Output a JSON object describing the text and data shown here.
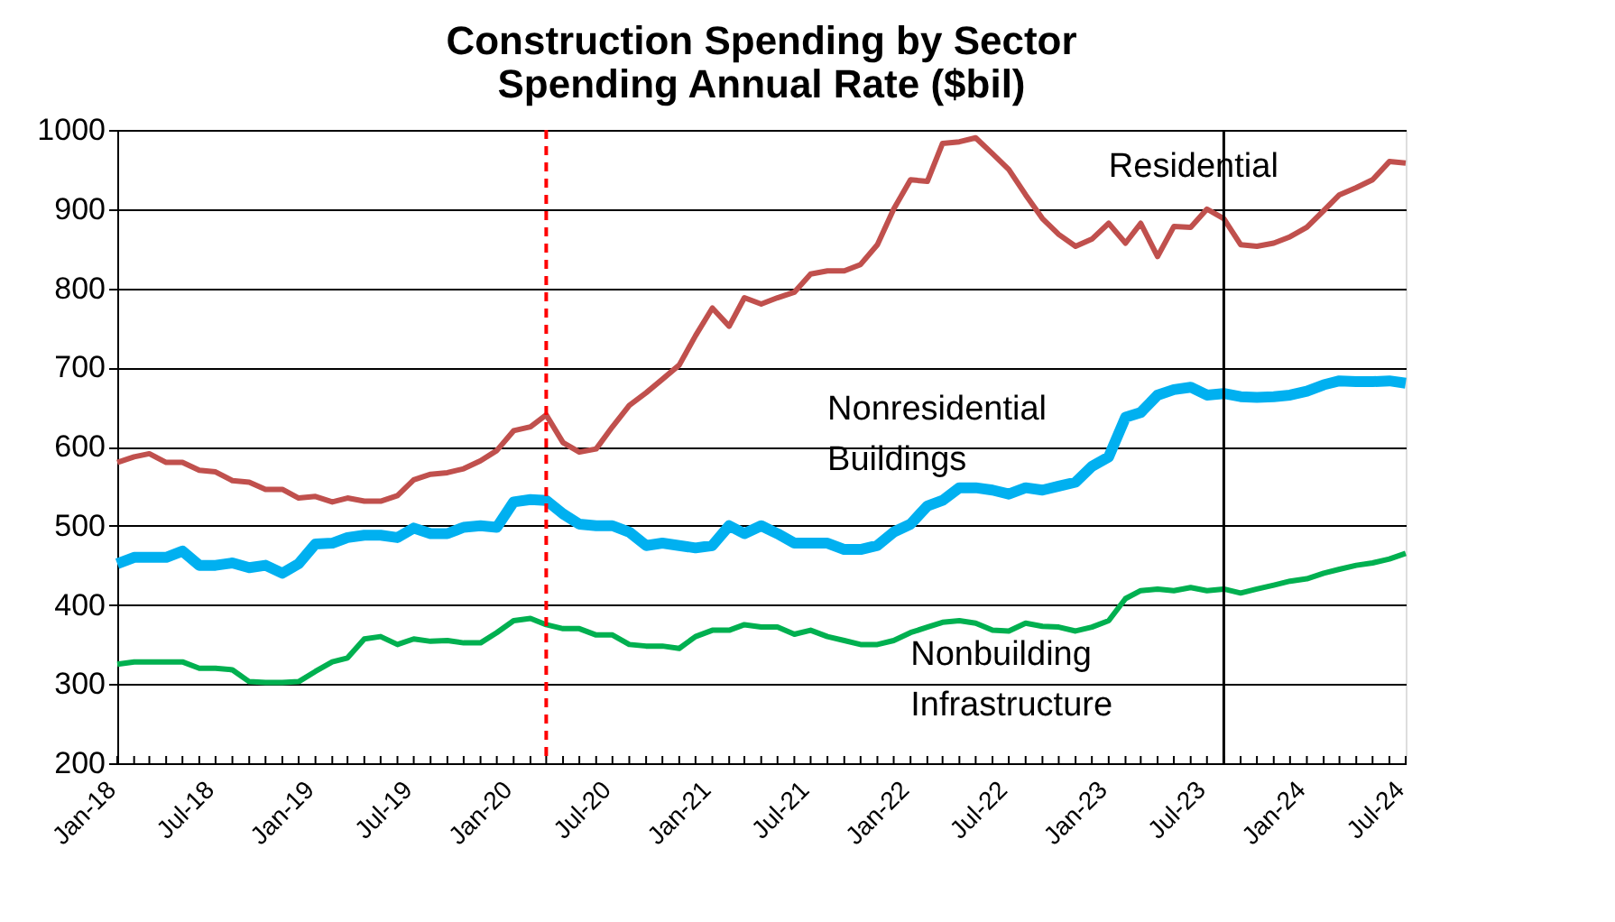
{
  "chart_data": {
    "type": "line",
    "title": "Construction Spending by Sector",
    "subtitle": "Spending Annual Rate ($bil)",
    "x": [
      "2018-01",
      "2018-02",
      "2018-03",
      "2018-04",
      "2018-05",
      "2018-06",
      "2018-07",
      "2018-08",
      "2018-09",
      "2018-10",
      "2018-11",
      "2018-12",
      "2019-01",
      "2019-02",
      "2019-03",
      "2019-04",
      "2019-05",
      "2019-06",
      "2019-07",
      "2019-08",
      "2019-09",
      "2019-10",
      "2019-11",
      "2019-12",
      "2020-01",
      "2020-02",
      "2020-03",
      "2020-04",
      "2020-05",
      "2020-06",
      "2020-07",
      "2020-08",
      "2020-09",
      "2020-10",
      "2020-11",
      "2020-12",
      "2021-01",
      "2021-02",
      "2021-03",
      "2021-04",
      "2021-05",
      "2021-06",
      "2021-07",
      "2021-08",
      "2021-09",
      "2021-10",
      "2021-11",
      "2021-12",
      "2022-01",
      "2022-02",
      "2022-03",
      "2022-04",
      "2022-05",
      "2022-06",
      "2022-07",
      "2022-08",
      "2022-09",
      "2022-10",
      "2022-11",
      "2022-12",
      "2023-01",
      "2023-02",
      "2023-03",
      "2023-04",
      "2023-05",
      "2023-06",
      "2023-07",
      "2023-08",
      "2023-09",
      "2023-10",
      "2023-11",
      "2023-12",
      "2024-01",
      "2024-02",
      "2024-03",
      "2024-04",
      "2024-05",
      "2024-06",
      "2024-07"
    ],
    "series": [
      {
        "name": "Residential",
        "color": "#c0504d",
        "values": [
          580,
          587,
          591,
          580,
          580,
          570,
          568,
          557,
          555,
          546,
          546,
          535,
          537,
          530,
          535,
          531,
          531,
          538,
          558,
          565,
          567,
          572,
          582,
          595,
          620,
          625,
          640,
          605,
          593,
          597,
          625,
          652,
          668,
          685,
          703,
          740,
          775,
          752,
          788,
          780,
          788,
          795,
          818,
          822,
          822,
          830,
          855,
          900,
          937,
          935,
          983,
          985,
          990,
          970,
          950,
          918,
          888,
          868,
          853,
          862,
          882,
          857,
          882,
          840,
          878,
          877,
          900,
          888,
          855,
          853,
          857,
          865,
          877,
          898,
          918,
          927,
          937,
          960,
          958
        ]
      },
      {
        "name": "Nonresidential Buildings",
        "color": "#00b0f0",
        "values": [
          452,
          460,
          460,
          460,
          468,
          450,
          450,
          453,
          447,
          450,
          440,
          452,
          477,
          478,
          485,
          488,
          488,
          485,
          497,
          490,
          490,
          498,
          500,
          498,
          530,
          533,
          532,
          515,
          502,
          500,
          500,
          492,
          475,
          478,
          475,
          472,
          475,
          500,
          490,
          500,
          490,
          478,
          478,
          478,
          470,
          470,
          475,
          492,
          502,
          525,
          532,
          548,
          548,
          545,
          540,
          548,
          545,
          550,
          555,
          575,
          587,
          637,
          643,
          665,
          672,
          675,
          665,
          667,
          663,
          662,
          663,
          665,
          670,
          678,
          683,
          682,
          682,
          683,
          680
        ]
      },
      {
        "name": "Nonbuilding Infrastructure",
        "color": "#00b050",
        "values": [
          325,
          328,
          328,
          328,
          328,
          320,
          320,
          318,
          303,
          302,
          302,
          303,
          316,
          328,
          333,
          357,
          360,
          350,
          357,
          354,
          355,
          352,
          352,
          365,
          380,
          383,
          375,
          370,
          370,
          362,
          362,
          350,
          348,
          348,
          345,
          360,
          368,
          368,
          375,
          372,
          372,
          363,
          368,
          360,
          355,
          350,
          350,
          355,
          365,
          372,
          378,
          380,
          377,
          368,
          367,
          377,
          373,
          372,
          367,
          372,
          380,
          408,
          418,
          420,
          418,
          422,
          418,
          420,
          415,
          420,
          425,
          430,
          433,
          440,
          445,
          450,
          453,
          458,
          465
        ]
      }
    ],
    "xlim": [
      "2018-01",
      "2024-07"
    ],
    "xticks": [
      {
        "value": "2018-01",
        "label": "Jan-18"
      },
      {
        "value": "2018-02",
        "label": null
      },
      {
        "value": "2018-03",
        "label": null
      },
      {
        "value": "2018-04",
        "label": null
      },
      {
        "value": "2018-05",
        "label": null
      },
      {
        "value": "2018-06",
        "label": null
      },
      {
        "value": "2018-07",
        "label": "Jul-18"
      },
      {
        "value": "2018-08",
        "label": null
      },
      {
        "value": "2018-09",
        "label": null
      },
      {
        "value": "2018-10",
        "label": null
      },
      {
        "value": "2018-11",
        "label": null
      },
      {
        "value": "2018-12",
        "label": null
      },
      {
        "value": "2019-01",
        "label": "Jan-19"
      },
      {
        "value": "2019-02",
        "label": null
      },
      {
        "value": "2019-03",
        "label": null
      },
      {
        "value": "2019-04",
        "label": null
      },
      {
        "value": "2019-05",
        "label": null
      },
      {
        "value": "2019-06",
        "label": null
      },
      {
        "value": "2019-07",
        "label": "Jul-19"
      },
      {
        "value": "2019-08",
        "label": null
      },
      {
        "value": "2019-09",
        "label": null
      },
      {
        "value": "2019-10",
        "label": null
      },
      {
        "value": "2019-11",
        "label": null
      },
      {
        "value": "2019-12",
        "label": null
      },
      {
        "value": "2020-01",
        "label": "Jan-20"
      },
      {
        "value": "2020-02",
        "label": null
      },
      {
        "value": "2020-03",
        "label": null
      },
      {
        "value": "2020-04",
        "label": null
      },
      {
        "value": "2020-05",
        "label": null
      },
      {
        "value": "2020-06",
        "label": null
      },
      {
        "value": "2020-07",
        "label": "Jul-20"
      },
      {
        "value": "2020-08",
        "label": null
      },
      {
        "value": "2020-09",
        "label": null
      },
      {
        "value": "2020-10",
        "label": null
      },
      {
        "value": "2020-11",
        "label": null
      },
      {
        "value": "2020-12",
        "label": null
      },
      {
        "value": "2021-01",
        "label": "Jan-21"
      },
      {
        "value": "2021-02",
        "label": null
      },
      {
        "value": "2021-03",
        "label": null
      },
      {
        "value": "2021-04",
        "label": null
      },
      {
        "value": "2021-05",
        "label": null
      },
      {
        "value": "2021-06",
        "label": null
      },
      {
        "value": "2021-07",
        "label": "Jul-21"
      },
      {
        "value": "2021-08",
        "label": null
      },
      {
        "value": "2021-09",
        "label": null
      },
      {
        "value": "2021-10",
        "label": null
      },
      {
        "value": "2021-11",
        "label": null
      },
      {
        "value": "2021-12",
        "label": null
      },
      {
        "value": "2022-01",
        "label": "Jan-22"
      },
      {
        "value": "2022-02",
        "label": null
      },
      {
        "value": "2022-03",
        "label": null
      },
      {
        "value": "2022-04",
        "label": null
      },
      {
        "value": "2022-05",
        "label": null
      },
      {
        "value": "2022-06",
        "label": null
      },
      {
        "value": "2022-07",
        "label": "Jul-22"
      },
      {
        "value": "2022-08",
        "label": null
      },
      {
        "value": "2022-09",
        "label": null
      },
      {
        "value": "2022-10",
        "label": null
      },
      {
        "value": "2022-11",
        "label": null
      },
      {
        "value": "2022-12",
        "label": null
      },
      {
        "value": "2023-01",
        "label": "Jan-23"
      },
      {
        "value": "2023-02",
        "label": null
      },
      {
        "value": "2023-03",
        "label": null
      },
      {
        "value": "2023-04",
        "label": null
      },
      {
        "value": "2023-05",
        "label": null
      },
      {
        "value": "2023-06",
        "label": null
      },
      {
        "value": "2023-07",
        "label": "Jul-23"
      },
      {
        "value": "2023-08",
        "label": null
      },
      {
        "value": "2023-09",
        "label": null
      },
      {
        "value": "2023-10",
        "label": null
      },
      {
        "value": "2023-11",
        "label": null
      },
      {
        "value": "2023-12",
        "label": null
      },
      {
        "value": "2024-01",
        "label": "Jan-24"
      },
      {
        "value": "2024-02",
        "label": null
      },
      {
        "value": "2024-03",
        "label": null
      },
      {
        "value": "2024-04",
        "label": null
      },
      {
        "value": "2024-05",
        "label": null
      },
      {
        "value": "2024-06",
        "label": null
      },
      {
        "value": "2024-07",
        "label": "Jul-24"
      }
    ],
    "ylim": [
      200,
      1000
    ],
    "yticks": [
      200,
      300,
      400,
      500,
      600,
      700,
      800,
      900,
      1000
    ],
    "ref_lines": [
      {
        "axis": "x",
        "value": "2020-03",
        "color": "#ff0000",
        "line_style": "dashed"
      },
      {
        "axis": "x",
        "value": "2023-08",
        "color": "#000000",
        "line_style": "solid"
      }
    ],
    "grid": "y",
    "marker": "none",
    "line_style": "solid"
  }
}
